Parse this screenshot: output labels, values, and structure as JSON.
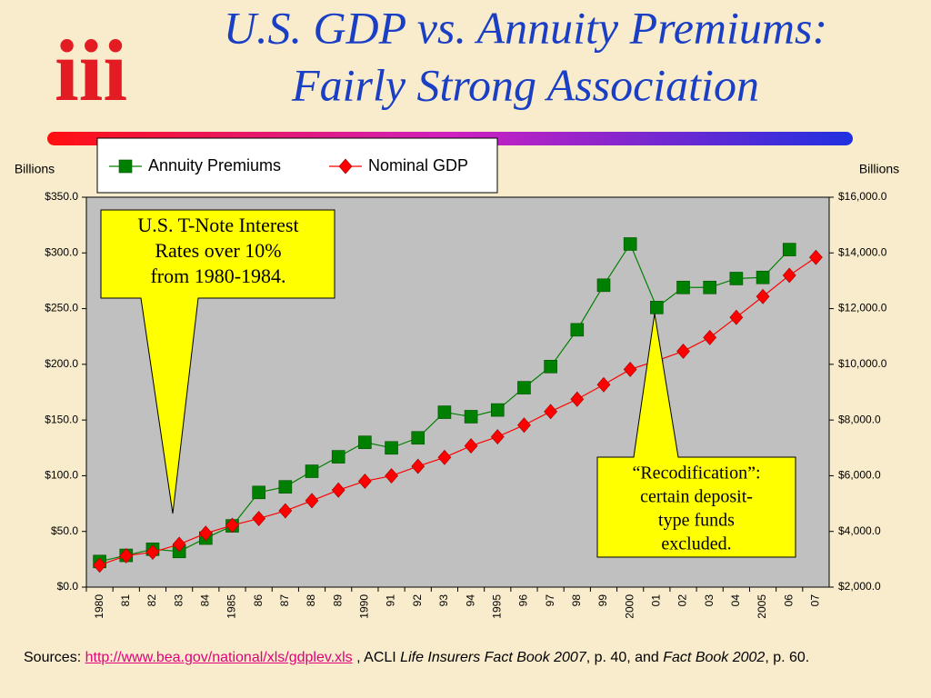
{
  "logo": "iii",
  "chart_data": {
    "type": "line",
    "title": [
      "U.S. GDP vs. Annuity Premiums:",
      "Fairly Strong Association"
    ],
    "ylabel": "Billions",
    "y2label": "Billions",
    "categories": [
      "1980",
      "81",
      "82",
      "83",
      "84",
      "1985",
      "86",
      "87",
      "88",
      "89",
      "1990",
      "91",
      "92",
      "93",
      "94",
      "1995",
      "96",
      "97",
      "98",
      "99",
      "2000",
      "01",
      "02",
      "03",
      "04",
      "2005",
      "06",
      "07"
    ],
    "series": [
      {
        "name": "Annuity Premiums",
        "color": "#008000",
        "marker": "square",
        "axis": "y",
        "values": [
          23,
          28.5,
          34,
          32,
          44,
          55,
          85,
          90,
          104,
          117,
          130,
          125,
          134,
          157,
          153,
          159,
          179,
          198,
          231,
          271,
          308,
          251,
          269,
          269,
          277,
          278,
          303,
          null
        ]
      },
      {
        "name": "Nominal GDP",
        "color": "#ff0000",
        "marker": "diamond",
        "axis": "y2",
        "values": [
          2790,
          3128,
          3255,
          3536,
          3933,
          4220,
          4463,
          4740,
          5104,
          5484,
          5803,
          5996,
          6338,
          6657,
          7072,
          7398,
          7817,
          8304,
          8747,
          9268,
          9817,
          10128,
          10470,
          10961,
          11686,
          12434,
          13195,
          13841
        ]
      }
    ],
    "ylim": [
      0,
      350
    ],
    "yticks": [
      {
        "value": 0,
        "label": "$0.0"
      },
      {
        "value": 50,
        "label": "$50.0"
      },
      {
        "value": 100,
        "label": "$100.0"
      },
      {
        "value": 150,
        "label": "$150.0"
      },
      {
        "value": 200,
        "label": "$200.0"
      },
      {
        "value": 250,
        "label": "$250.0"
      },
      {
        "value": 300,
        "label": "$300.0"
      },
      {
        "value": 350,
        "label": "$350.0"
      }
    ],
    "y2lim": [
      2000,
      16000
    ],
    "y2ticks": [
      {
        "value": 2000,
        "label": "$2,000.0"
      },
      {
        "value": 4000,
        "label": "$4,000.0"
      },
      {
        "value": 6000,
        "label": "$6,000.0"
      },
      {
        "value": 8000,
        "label": "$8,000.0"
      },
      {
        "value": 10000,
        "label": "$10,000.0"
      },
      {
        "value": 12000,
        "label": "$12,000.0"
      },
      {
        "value": 14000,
        "label": "$14,000.0"
      },
      {
        "value": 16000,
        "label": "$16,000.0"
      }
    ],
    "grid": false,
    "legend": "top",
    "annotations": [
      [
        "U.S. T-Note Interest",
        "Rates over 10%",
        "from 1980-1984."
      ],
      [
        "“Recodification”:",
        "certain deposit-",
        "type funds",
        "excluded."
      ]
    ]
  },
  "sources": {
    "prefix": "Sources:",
    "link": "http://www.bea.gov/national/xls/gdplev.xls",
    "mid": ", ACLI",
    "book1": "Life Insurers Fact Book 2007",
    "mid2": ", p. 40, and",
    "book2": "Fact Book 2002",
    "end": ", p. 60."
  }
}
